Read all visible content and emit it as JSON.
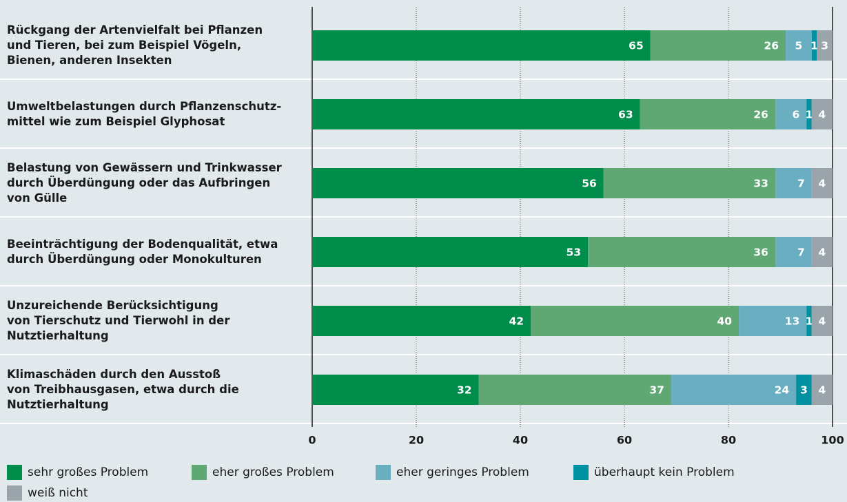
{
  "chart_data": {
    "type": "stacked_barh",
    "categories": [
      "Rückgang der Artenvielfalt bei Pflanzen\nund Tieren, bei zum Beispiel Vögeln,\nBienen, anderen Insekten",
      "Umweltbelastungen durch Pflanzenschutz-\nmittel wie zum Beispiel Glyphosat",
      "Belastung von Gewässern und Trinkwasser\ndurch Überdüngung oder das Aufbringen\nvon Gülle",
      "Beeinträchtigung der Bodenqualität, etwa\ndurch Überdüngung oder Monokulturen",
      "Unzureichende Berücksichtigung\nvon Tierschutz und Tierwohl in der\nNutztierhaltung",
      "Klimaschäden durch den Ausstoß\nvon Treibhausgasen, etwa durch die\nNutztierhaltung"
    ],
    "series": [
      {
        "name": "sehr großes Problem",
        "color": "#008c4a",
        "values": [
          65,
          63,
          56,
          53,
          42,
          32
        ]
      },
      {
        "name": "eher großes Problem",
        "color": "#5fa874",
        "values": [
          26,
          26,
          33,
          36,
          40,
          37
        ]
      },
      {
        "name": "eher geringes Problem",
        "color": "#6aafc1",
        "values": [
          5,
          6,
          7,
          7,
          13,
          24
        ]
      },
      {
        "name": "überhaupt kein Problem",
        "color": "#00909f",
        "values": [
          1,
          1,
          null,
          null,
          1,
          3
        ]
      },
      {
        "name": "weiß nicht",
        "color": "#9aa5ab",
        "values": [
          3,
          4,
          4,
          4,
          4,
          4
        ]
      }
    ],
    "xlim": [
      0,
      100
    ],
    "xticks": [
      0,
      20,
      40,
      60,
      80,
      100
    ],
    "grid": true
  }
}
